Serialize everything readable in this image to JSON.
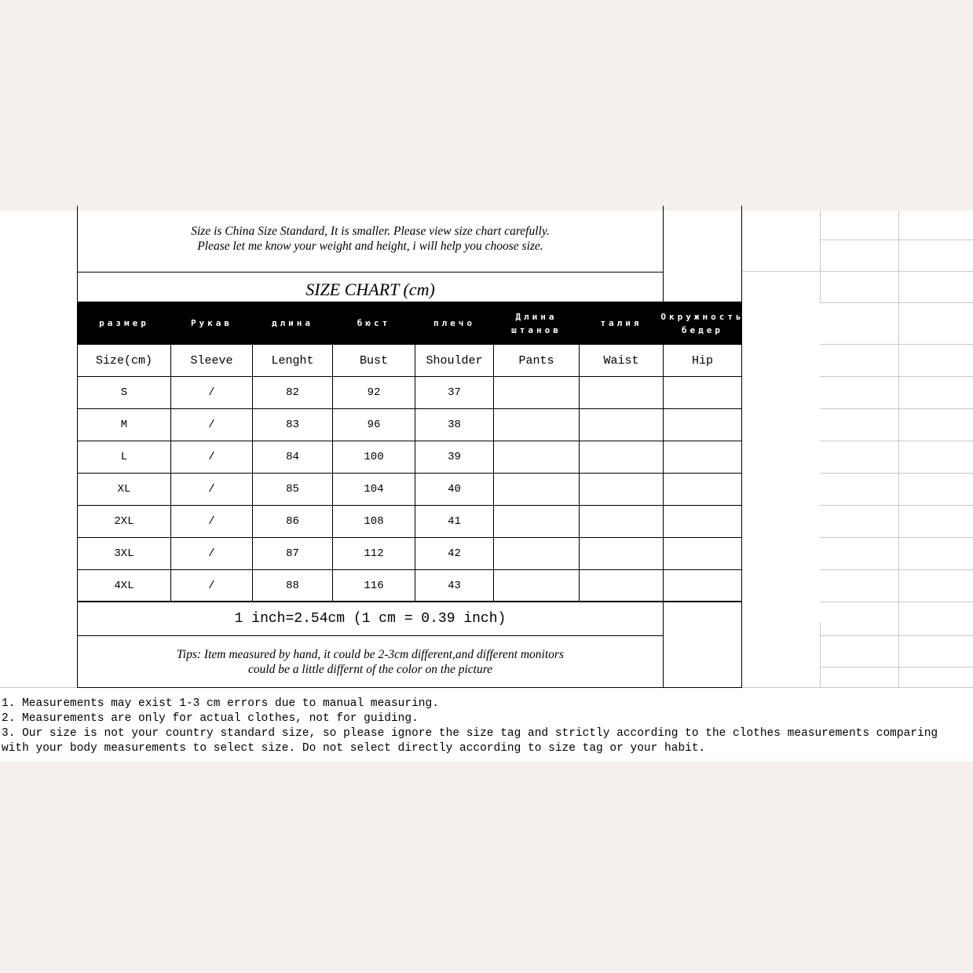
{
  "intro": [
    "Size is China Size Standard, It is smaller. Please view size chart carefully.",
    "Please let me know your weight and height, i will help you choose size."
  ],
  "title": "SIZE CHART (cm)",
  "headers_ru": [
    "размер",
    "Рукав",
    "длина",
    "бюст",
    "плечо",
    "Длина штанов",
    "талия",
    "Окружность бедер"
  ],
  "headers_en": [
    "Size(cm)",
    "Sleeve",
    "Lenght",
    "Bust",
    "Shoulder",
    "Pants",
    "Waist",
    "Hip"
  ],
  "rows": [
    [
      "S",
      "/",
      "82",
      "92",
      "37",
      "",
      "",
      ""
    ],
    [
      "M",
      "/",
      "83",
      "96",
      "38",
      "",
      "",
      ""
    ],
    [
      "L",
      "/",
      "84",
      "100",
      "39",
      "",
      "",
      ""
    ],
    [
      "XL",
      "/",
      "85",
      "104",
      "40",
      "",
      "",
      ""
    ],
    [
      "2XL",
      "/",
      "86",
      "108",
      "41",
      "",
      "",
      ""
    ],
    [
      "3XL",
      "/",
      "87",
      "112",
      "42",
      "",
      "",
      ""
    ],
    [
      "4XL",
      "/",
      "88",
      "116",
      "43",
      "",
      "",
      ""
    ]
  ],
  "conversion": "1 inch=2.54cm (1 cm = 0.39 inch)",
  "tips": [
    "Tips: Item measured by hand, it could be 2-3cm different,and different monitors",
    "could be a little differnt of the color on the picture"
  ],
  "notes": [
    "1. Measurements may exist 1-3 cm errors due to manual measuring.",
    "2. Measurements are only for actual clothes, not for guiding.",
    "3. Our size is not your country standard size, so please ignore the size tag and strictly according to the clothes measurements comparing",
    "with your body measurements to select size. Do not select directly according to size tag or your habit."
  ]
}
